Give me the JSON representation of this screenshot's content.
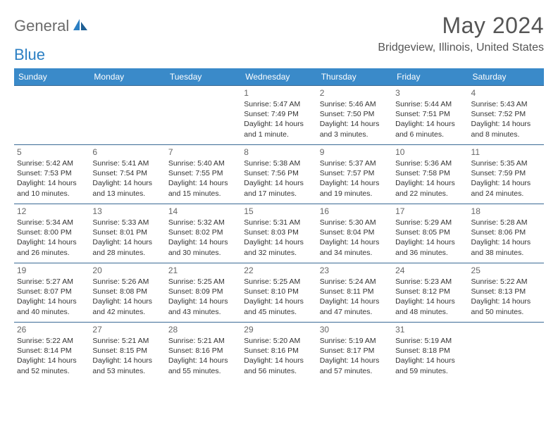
{
  "header": {
    "logo_general": "General",
    "logo_blue": "Blue",
    "month_title": "May 2024",
    "location": "Bridgeview, Illinois, United States"
  },
  "styling": {
    "header_bg": "#3a8ac9",
    "header_text": "#ffffff",
    "border_color": "#3a6a95",
    "logo_gray": "#6b6b6b",
    "logo_blue": "#2b7fc3",
    "title_color": "#555555",
    "body_text": "#333333",
    "page_bg": "#ffffff",
    "month_title_fontsize": 32,
    "location_fontsize": 16,
    "dayheader_fontsize": 12,
    "daynum_fontsize": 12,
    "info_fontsize": 10.5
  },
  "day_headers": [
    "Sunday",
    "Monday",
    "Tuesday",
    "Wednesday",
    "Thursday",
    "Friday",
    "Saturday"
  ],
  "weeks": [
    [
      null,
      null,
      null,
      {
        "n": "1",
        "sr": "Sunrise: 5:47 AM",
        "ss": "Sunset: 7:49 PM",
        "dl": "Daylight: 14 hours and 1 minute."
      },
      {
        "n": "2",
        "sr": "Sunrise: 5:46 AM",
        "ss": "Sunset: 7:50 PM",
        "dl": "Daylight: 14 hours and 3 minutes."
      },
      {
        "n": "3",
        "sr": "Sunrise: 5:44 AM",
        "ss": "Sunset: 7:51 PM",
        "dl": "Daylight: 14 hours and 6 minutes."
      },
      {
        "n": "4",
        "sr": "Sunrise: 5:43 AM",
        "ss": "Sunset: 7:52 PM",
        "dl": "Daylight: 14 hours and 8 minutes."
      }
    ],
    [
      {
        "n": "5",
        "sr": "Sunrise: 5:42 AM",
        "ss": "Sunset: 7:53 PM",
        "dl": "Daylight: 14 hours and 10 minutes."
      },
      {
        "n": "6",
        "sr": "Sunrise: 5:41 AM",
        "ss": "Sunset: 7:54 PM",
        "dl": "Daylight: 14 hours and 13 minutes."
      },
      {
        "n": "7",
        "sr": "Sunrise: 5:40 AM",
        "ss": "Sunset: 7:55 PM",
        "dl": "Daylight: 14 hours and 15 minutes."
      },
      {
        "n": "8",
        "sr": "Sunrise: 5:38 AM",
        "ss": "Sunset: 7:56 PM",
        "dl": "Daylight: 14 hours and 17 minutes."
      },
      {
        "n": "9",
        "sr": "Sunrise: 5:37 AM",
        "ss": "Sunset: 7:57 PM",
        "dl": "Daylight: 14 hours and 19 minutes."
      },
      {
        "n": "10",
        "sr": "Sunrise: 5:36 AM",
        "ss": "Sunset: 7:58 PM",
        "dl": "Daylight: 14 hours and 22 minutes."
      },
      {
        "n": "11",
        "sr": "Sunrise: 5:35 AM",
        "ss": "Sunset: 7:59 PM",
        "dl": "Daylight: 14 hours and 24 minutes."
      }
    ],
    [
      {
        "n": "12",
        "sr": "Sunrise: 5:34 AM",
        "ss": "Sunset: 8:00 PM",
        "dl": "Daylight: 14 hours and 26 minutes."
      },
      {
        "n": "13",
        "sr": "Sunrise: 5:33 AM",
        "ss": "Sunset: 8:01 PM",
        "dl": "Daylight: 14 hours and 28 minutes."
      },
      {
        "n": "14",
        "sr": "Sunrise: 5:32 AM",
        "ss": "Sunset: 8:02 PM",
        "dl": "Daylight: 14 hours and 30 minutes."
      },
      {
        "n": "15",
        "sr": "Sunrise: 5:31 AM",
        "ss": "Sunset: 8:03 PM",
        "dl": "Daylight: 14 hours and 32 minutes."
      },
      {
        "n": "16",
        "sr": "Sunrise: 5:30 AM",
        "ss": "Sunset: 8:04 PM",
        "dl": "Daylight: 14 hours and 34 minutes."
      },
      {
        "n": "17",
        "sr": "Sunrise: 5:29 AM",
        "ss": "Sunset: 8:05 PM",
        "dl": "Daylight: 14 hours and 36 minutes."
      },
      {
        "n": "18",
        "sr": "Sunrise: 5:28 AM",
        "ss": "Sunset: 8:06 PM",
        "dl": "Daylight: 14 hours and 38 minutes."
      }
    ],
    [
      {
        "n": "19",
        "sr": "Sunrise: 5:27 AM",
        "ss": "Sunset: 8:07 PM",
        "dl": "Daylight: 14 hours and 40 minutes."
      },
      {
        "n": "20",
        "sr": "Sunrise: 5:26 AM",
        "ss": "Sunset: 8:08 PM",
        "dl": "Daylight: 14 hours and 42 minutes."
      },
      {
        "n": "21",
        "sr": "Sunrise: 5:25 AM",
        "ss": "Sunset: 8:09 PM",
        "dl": "Daylight: 14 hours and 43 minutes."
      },
      {
        "n": "22",
        "sr": "Sunrise: 5:25 AM",
        "ss": "Sunset: 8:10 PM",
        "dl": "Daylight: 14 hours and 45 minutes."
      },
      {
        "n": "23",
        "sr": "Sunrise: 5:24 AM",
        "ss": "Sunset: 8:11 PM",
        "dl": "Daylight: 14 hours and 47 minutes."
      },
      {
        "n": "24",
        "sr": "Sunrise: 5:23 AM",
        "ss": "Sunset: 8:12 PM",
        "dl": "Daylight: 14 hours and 48 minutes."
      },
      {
        "n": "25",
        "sr": "Sunrise: 5:22 AM",
        "ss": "Sunset: 8:13 PM",
        "dl": "Daylight: 14 hours and 50 minutes."
      }
    ],
    [
      {
        "n": "26",
        "sr": "Sunrise: 5:22 AM",
        "ss": "Sunset: 8:14 PM",
        "dl": "Daylight: 14 hours and 52 minutes."
      },
      {
        "n": "27",
        "sr": "Sunrise: 5:21 AM",
        "ss": "Sunset: 8:15 PM",
        "dl": "Daylight: 14 hours and 53 minutes."
      },
      {
        "n": "28",
        "sr": "Sunrise: 5:21 AM",
        "ss": "Sunset: 8:16 PM",
        "dl": "Daylight: 14 hours and 55 minutes."
      },
      {
        "n": "29",
        "sr": "Sunrise: 5:20 AM",
        "ss": "Sunset: 8:16 PM",
        "dl": "Daylight: 14 hours and 56 minutes."
      },
      {
        "n": "30",
        "sr": "Sunrise: 5:19 AM",
        "ss": "Sunset: 8:17 PM",
        "dl": "Daylight: 14 hours and 57 minutes."
      },
      {
        "n": "31",
        "sr": "Sunrise: 5:19 AM",
        "ss": "Sunset: 8:18 PM",
        "dl": "Daylight: 14 hours and 59 minutes."
      },
      null
    ]
  ]
}
